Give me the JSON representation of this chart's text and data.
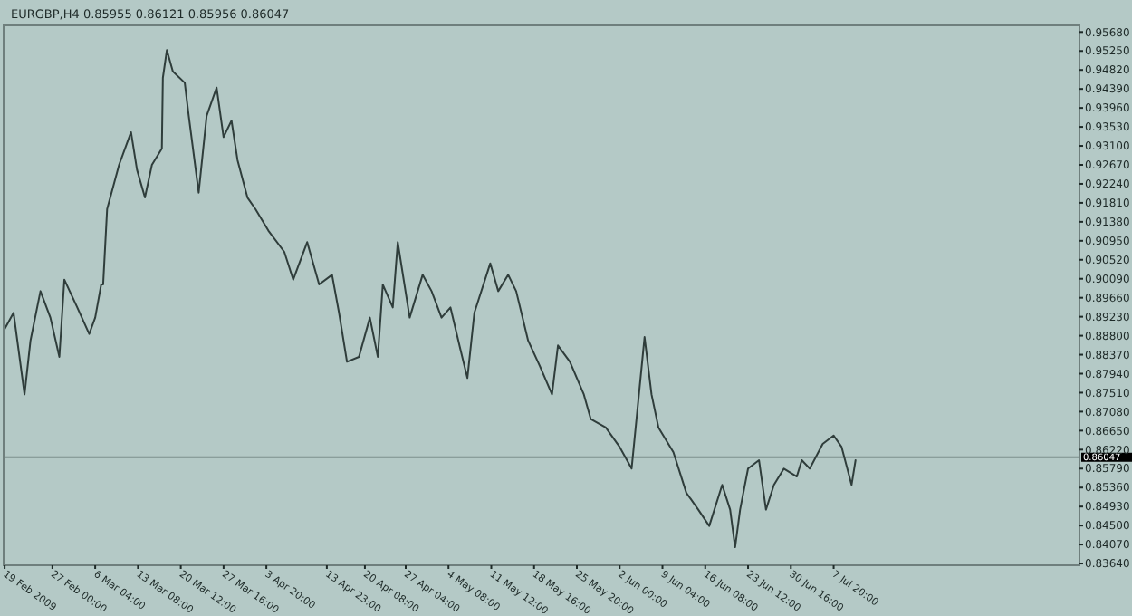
{
  "chart_data": {
    "type": "line",
    "title": "EURGBP,H4 0.85955 0.86121 0.85956 0.86047",
    "x": [
      "2009-02-19T00:00",
      "2009-02-20T12:00",
      "2009-02-22T08:00",
      "2009-02-23T08:00",
      "2009-02-25T00:00",
      "2009-02-26T16:00",
      "2009-02-28T04:00",
      "2009-03-01T00:00",
      "2009-03-03T04:00",
      "2009-03-05T04:00",
      "2009-03-06T04:00",
      "2009-03-07T04:00",
      "2009-03-07T12:00",
      "2009-03-08T04:00",
      "2009-03-10T04:00",
      "2009-03-12T04:00",
      "2009-03-13T04:00",
      "2009-03-14T12:00",
      "2009-03-15T16:00",
      "2009-03-17T08:00",
      "2009-03-17T12:00",
      "2009-03-18T04:00",
      "2009-03-19T04:00",
      "2009-03-21T04:00",
      "2009-03-21T20:00",
      "2009-03-23T12:00",
      "2009-03-24T20:00",
      "2009-03-26T12:00",
      "2009-03-27T16:00",
      "2009-03-29T00:00",
      "2009-03-30T00:00",
      "2009-03-31T16:00",
      "2009-04-02T00:00",
      "2009-04-04T04:00",
      "2009-04-06T20:00",
      "2009-04-08T08:00",
      "2009-04-10T16:00",
      "2009-04-12T16:00",
      "2009-04-14T20:00",
      "2009-04-16T00:00",
      "2009-04-17T08:00",
      "2009-04-19T08:00",
      "2009-04-21T04:00",
      "2009-04-22T12:00",
      "2009-04-23T08:00",
      "2009-04-25T00:00",
      "2009-04-25T20:00",
      "2009-04-27T20:00",
      "2009-04-30T00:00",
      "2009-05-01T12:00",
      "2009-05-03T04:00",
      "2009-05-04T16:00",
      "2009-05-06T04:00",
      "2009-05-07T12:00",
      "2009-05-08T16:00",
      "2009-05-11T08:00",
      "2009-05-12T16:00",
      "2009-05-14T08:00",
      "2009-05-15T16:00",
      "2009-05-17T16:00",
      "2009-05-19T16:00",
      "2009-05-21T16:00",
      "2009-05-22T16:00",
      "2009-05-24T16:00",
      "2009-05-27T00:00",
      "2009-05-28T04:00",
      "2009-05-30T16:00",
      "2009-06-02T00:00",
      "2009-06-04T00:00",
      "2009-06-06T04:00",
      "2009-06-07T08:00",
      "2009-06-08T12:00",
      "2009-06-11T00:00",
      "2009-06-13T04:00",
      "2009-06-15T04:00",
      "2009-06-17T00:00",
      "2009-06-19T04:00",
      "2009-06-20T12:00",
      "2009-06-21T08:00",
      "2009-06-22T04:00",
      "2009-06-23T12:00",
      "2009-06-25T08:00",
      "2009-06-26T12:00",
      "2009-06-27T20:00",
      "2009-06-29T12:00",
      "2009-07-01T16:00",
      "2009-07-02T12:00",
      "2009-07-03T20:00",
      "2009-07-06T00:00",
      "2009-07-07T20:00",
      "2009-07-09T04:00",
      "2009-07-10T20:00",
      "2009-07-11T12:00"
    ],
    "series": [
      {
        "color": "#2f3d3b",
        "values": [
          0.8895,
          0.8932,
          0.8747,
          0.8869,
          0.8981,
          0.8921,
          0.8832,
          0.9007,
          0.8944,
          0.8884,
          0.8921,
          0.8996,
          0.8996,
          0.9167,
          0.9267,
          0.9341,
          0.9256,
          0.9193,
          0.9267,
          0.9304,
          0.9464,
          0.9527,
          0.9479,
          0.9453,
          0.9378,
          0.9204,
          0.9378,
          0.9442,
          0.933,
          0.9367,
          0.9278,
          0.9193,
          0.9167,
          0.9118,
          0.907,
          0.9007,
          0.9092,
          0.8996,
          0.9018,
          0.8932,
          0.8821,
          0.8832,
          0.8921,
          0.8832,
          0.8996,
          0.8944,
          0.9092,
          0.8921,
          0.9018,
          0.8981,
          0.8921,
          0.8944,
          0.8858,
          0.8784,
          0.8932,
          0.9044,
          0.8981,
          0.9018,
          0.8981,
          0.8869,
          0.881,
          0.8747,
          0.8858,
          0.8821,
          0.8747,
          0.8691,
          0.8672,
          0.8628,
          0.8579,
          0.8877,
          0.8747,
          0.8672,
          0.8616,
          0.8524,
          0.8486,
          0.8449,
          0.8542,
          0.8486,
          0.8401,
          0.8486,
          0.8579,
          0.8598,
          0.8486,
          0.8542,
          0.8579,
          0.8561,
          0.8598,
          0.8579,
          0.8635,
          0.8654,
          0.8628,
          0.8542,
          0.8598
        ]
      }
    ],
    "xlim": [
      "2009-02-18T20:00",
      "2009-08-18"
    ],
    "xticks": [
      {
        "value": "2009-02-19",
        "label": "19 Feb 2009"
      },
      {
        "value": "2009-02-27T00:00",
        "label": "27 Feb 00:00"
      },
      {
        "value": "2009-03-06T04:00",
        "label": "6 Mar 04:00"
      },
      {
        "value": "2009-03-13T08:00",
        "label": "13 Mar 08:00"
      },
      {
        "value": "2009-03-20T12:00",
        "label": "20 Mar 12:00"
      },
      {
        "value": "2009-03-27T16:00",
        "label": "27 Mar 16:00"
      },
      {
        "value": "2009-04-03T20:00",
        "label": "3 Apr 20:00"
      },
      {
        "value": "2009-04-13T23:00",
        "label": "13 Apr 23:00"
      },
      {
        "value": "2009-04-20T08:00",
        "label": "20 Apr 08:00"
      },
      {
        "value": "2009-04-27T04:00",
        "label": "27 Apr 04:00"
      },
      {
        "value": "2009-05-04T08:00",
        "label": "4 May 08:00"
      },
      {
        "value": "2009-05-11T12:00",
        "label": "11 May 12:00"
      },
      {
        "value": "2009-05-18T16:00",
        "label": "18 May 16:00"
      },
      {
        "value": "2009-05-25T20:00",
        "label": "25 May 20:00"
      },
      {
        "value": "2009-06-02T00:00",
        "label": "2 Jun 00:00"
      },
      {
        "value": "2009-06-09T04:00",
        "label": "9 Jun 04:00"
      },
      {
        "value": "2009-06-16T08:00",
        "label": "16 Jun 08:00"
      },
      {
        "value": "2009-06-23T12:00",
        "label": "23 Jun 12:00"
      },
      {
        "value": "2009-06-30T16:00",
        "label": "30 Jun 16:00"
      },
      {
        "value": "2009-07-07T20:00",
        "label": "7 Jul 20:00"
      }
    ],
    "ylim": [
      0.836,
      0.9583
    ],
    "yticks": [
      {
        "value": 0.8364,
        "label": "0.83640"
      },
      {
        "value": 0.8407,
        "label": "0.84070"
      },
      {
        "value": 0.845,
        "label": "0.84500"
      },
      {
        "value": 0.8493,
        "label": "0.84930"
      },
      {
        "value": 0.8536,
        "label": "0.85360"
      },
      {
        "value": 0.8579,
        "label": "0.85790"
      },
      {
        "value": 0.8622,
        "label": "0.86220"
      },
      {
        "value": 0.8665,
        "label": "0.86650"
      },
      {
        "value": 0.8708,
        "label": "0.87080"
      },
      {
        "value": 0.8751,
        "label": "0.87510"
      },
      {
        "value": 0.8794,
        "label": "0.87940"
      },
      {
        "value": 0.8837,
        "label": "0.88370"
      },
      {
        "value": 0.888,
        "label": "0.88800"
      },
      {
        "value": 0.8923,
        "label": "0.89230"
      },
      {
        "value": 0.8966,
        "label": "0.89660"
      },
      {
        "value": 0.9009,
        "label": "0.90090"
      },
      {
        "value": 0.9052,
        "label": "0.90520"
      },
      {
        "value": 0.9095,
        "label": "0.90950"
      },
      {
        "value": 0.9138,
        "label": "0.91380"
      },
      {
        "value": 0.9181,
        "label": "0.91810"
      },
      {
        "value": 0.9224,
        "label": "0.92240"
      },
      {
        "value": 0.9267,
        "label": "0.92670"
      },
      {
        "value": 0.931,
        "label": "0.93100"
      },
      {
        "value": 0.9353,
        "label": "0.93530"
      },
      {
        "value": 0.9396,
        "label": "0.93960"
      },
      {
        "value": 0.9439,
        "label": "0.94390"
      },
      {
        "value": 0.9482,
        "label": "0.94820"
      },
      {
        "value": 0.9525,
        "label": "0.95250"
      },
      {
        "value": 0.9568,
        "label": "0.95680"
      }
    ],
    "ref_lines": [
      {
        "axis": "y",
        "value": 0.86047,
        "label": "0.86047",
        "color": "#7d8f8c"
      }
    ],
    "line_style": "solid",
    "marker": "none",
    "grid": false
  }
}
